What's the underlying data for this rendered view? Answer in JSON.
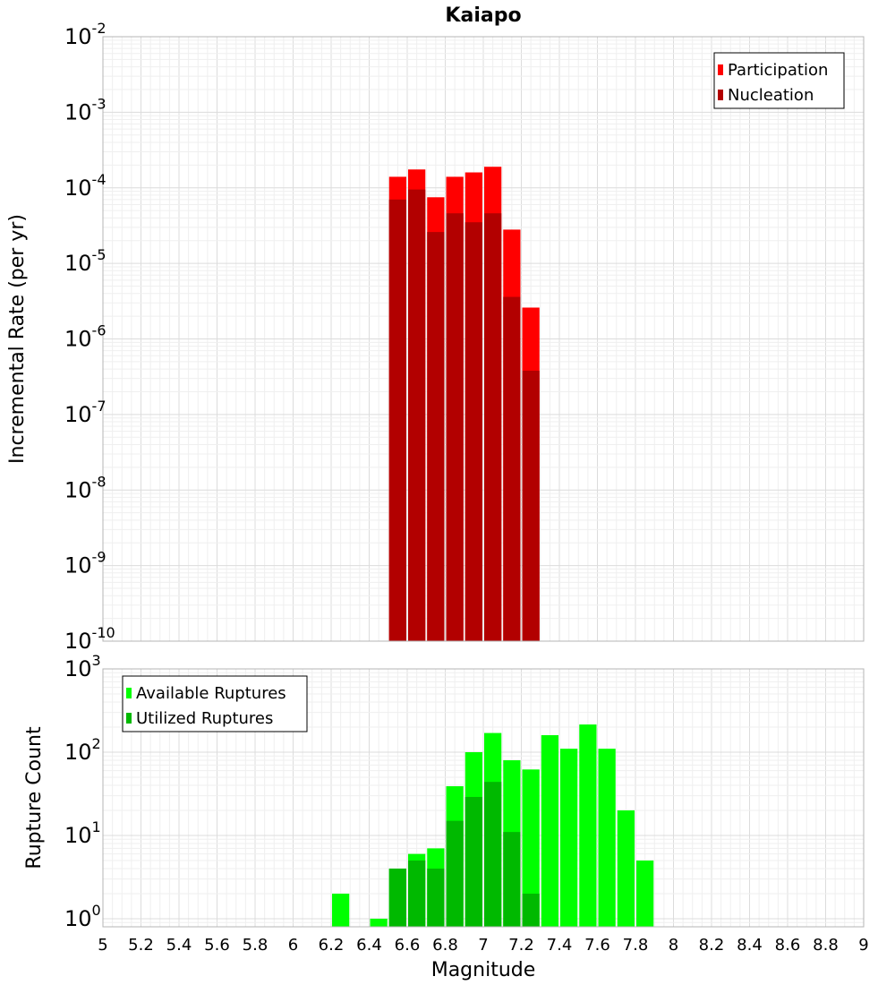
{
  "colors": {
    "participation": "#ff0000",
    "nucleation": "#b20000",
    "available": "#00ff00",
    "utilized": "#00b900",
    "grid_major": "#dcdcdc",
    "grid_minor": "#efefef",
    "frame": "#b4b4b4"
  },
  "chart_data": [
    {
      "type": "bar",
      "title": "Kaiapo",
      "xlabel": "",
      "ylabel": "Incremental Rate (per yr)",
      "yscale": "log",
      "ylim": [
        1e-10,
        0.01
      ],
      "xlim": [
        5,
        9
      ],
      "y_ticks": [
        {
          "base": "10",
          "exp": "-10",
          "value": 1e-10
        },
        {
          "base": "10",
          "exp": "-9",
          "value": 1e-09
        },
        {
          "base": "10",
          "exp": "-8",
          "value": 1e-08
        },
        {
          "base": "10",
          "exp": "-7",
          "value": 1e-07
        },
        {
          "base": "10",
          "exp": "-6",
          "value": 1e-06
        },
        {
          "base": "10",
          "exp": "-5",
          "value": 1e-05
        },
        {
          "base": "10",
          "exp": "-4",
          "value": 0.0001
        },
        {
          "base": "10",
          "exp": "-3",
          "value": 0.001
        },
        {
          "base": "10",
          "exp": "-2",
          "value": 0.01
        }
      ],
      "legend": {
        "position": "top-right",
        "entries": [
          "Participation",
          "Nucleation"
        ]
      },
      "x": [
        6.55,
        6.65,
        6.75,
        6.85,
        6.95,
        7.05,
        7.15,
        7.25
      ],
      "series": [
        {
          "name": "Participation",
          "values": [
            0.00014,
            0.000175,
            7.5e-05,
            0.00014,
            0.00016,
            0.00019,
            2.8e-05,
            2.6e-06
          ]
        },
        {
          "name": "Nucleation",
          "values": [
            7e-05,
            9.5e-05,
            2.6e-05,
            4.6e-05,
            3.5e-05,
            4.6e-05,
            3.6e-06,
            3.8e-07
          ]
        }
      ]
    },
    {
      "type": "bar",
      "title": "",
      "xlabel": "Magnitude",
      "ylabel": "Rupture Count",
      "yscale": "log",
      "ylim": [
        0.8,
        1000
      ],
      "xlim": [
        5,
        9
      ],
      "y_ticks": [
        {
          "base": "10",
          "exp": "0",
          "value": 1
        },
        {
          "base": "10",
          "exp": "1",
          "value": 10
        },
        {
          "base": "10",
          "exp": "2",
          "value": 100
        },
        {
          "base": "10",
          "exp": "3",
          "value": 1000
        }
      ],
      "x_tick_labels": [
        "5",
        "5.2",
        "5.4",
        "5.6",
        "5.8",
        "6",
        "6.2",
        "6.4",
        "6.6",
        "6.8",
        "7",
        "7.2",
        "7.4",
        "7.6",
        "7.8",
        "8",
        "8.2",
        "8.4",
        "8.6",
        "8.8",
        "9"
      ],
      "legend": {
        "position": "top-left",
        "entries": [
          "Available Ruptures",
          "Utilized Ruptures"
        ]
      },
      "x": [
        6.25,
        6.45,
        6.55,
        6.65,
        6.75,
        6.85,
        6.95,
        7.05,
        7.15,
        7.25,
        7.35,
        7.45,
        7.55,
        7.65,
        7.75,
        7.85
      ],
      "series": [
        {
          "name": "Available Ruptures",
          "values": [
            2,
            1,
            4,
            6,
            7,
            39,
            100,
            170,
            80,
            62,
            160,
            110,
            215,
            110,
            20,
            5
          ]
        },
        {
          "name": "Utilized Ruptures",
          "values": [
            null,
            null,
            4,
            5,
            4,
            15,
            29,
            44,
            11,
            2,
            null,
            null,
            null,
            null,
            null,
            null
          ]
        }
      ]
    }
  ]
}
